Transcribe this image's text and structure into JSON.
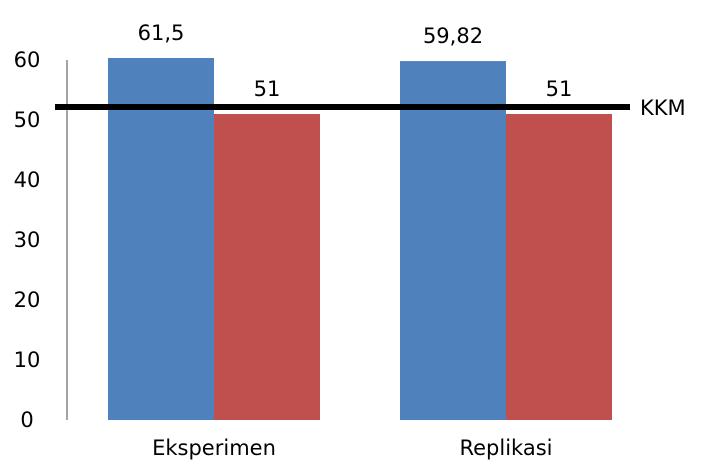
{
  "chart_data": {
    "type": "bar",
    "title": "",
    "xlabel": "",
    "ylabel": "",
    "categories": [
      "Eksperimen",
      "Replikasi"
    ],
    "series": [
      {
        "values": [
          61.5,
          59.82
        ],
        "color": "#4F81BD"
      },
      {
        "values": [
          51,
          51
        ],
        "color": "#C0504D"
      }
    ],
    "data_labels": [
      [
        "61,5",
        "59,82"
      ],
      [
        "51",
        "51"
      ]
    ],
    "ylim": [
      0,
      60
    ],
    "yticks": [
      0,
      10,
      20,
      30,
      40,
      50,
      60
    ],
    "grid": false,
    "legend": "none",
    "reference_line": {
      "label": "KKM",
      "value": 52,
      "color": "#000000"
    }
  }
}
